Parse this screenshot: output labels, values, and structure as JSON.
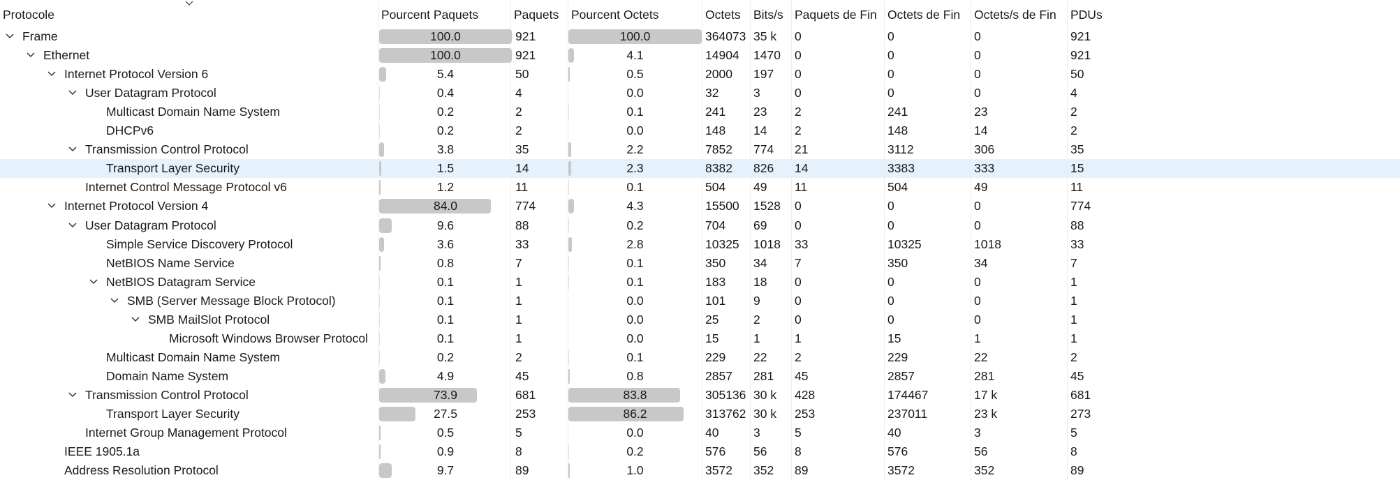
{
  "header": {
    "columns": [
      "Protocole",
      "Pourcent Paquets",
      "Paquets",
      "Pourcent Octets",
      "Octets",
      "Bits/s",
      "Paquets de Fin",
      "Octets de Fin",
      "Octets/s de Fin",
      "PDUs"
    ],
    "sort_indicator_icon": "chevron-down-icon"
  },
  "selected_row_index": 7,
  "rows": [
    {
      "name": "Frame",
      "depth": 0,
      "expanded": true,
      "pct_packets": "100.0",
      "packets": "921",
      "pct_bytes": "100.0",
      "bytes": "364073",
      "bits_s": "35 k",
      "end_packets": "0",
      "end_bytes": "0",
      "end_bits_s": "0",
      "pdus": "921"
    },
    {
      "name": "Ethernet",
      "depth": 1,
      "expanded": true,
      "pct_packets": "100.0",
      "packets": "921",
      "pct_bytes": "4.1",
      "bytes": "14904",
      "bits_s": "1470",
      "end_packets": "0",
      "end_bytes": "0",
      "end_bits_s": "0",
      "pdus": "921"
    },
    {
      "name": "Internet Protocol Version 6",
      "depth": 2,
      "expanded": true,
      "pct_packets": "5.4",
      "packets": "50",
      "pct_bytes": "0.5",
      "bytes": "2000",
      "bits_s": "197",
      "end_packets": "0",
      "end_bytes": "0",
      "end_bits_s": "0",
      "pdus": "50"
    },
    {
      "name": "User Datagram Protocol",
      "depth": 3,
      "expanded": true,
      "pct_packets": "0.4",
      "packets": "4",
      "pct_bytes": "0.0",
      "bytes": "32",
      "bits_s": "3",
      "end_packets": "0",
      "end_bytes": "0",
      "end_bits_s": "0",
      "pdus": "4"
    },
    {
      "name": "Multicast Domain Name System",
      "depth": 4,
      "expanded": null,
      "pct_packets": "0.2",
      "packets": "2",
      "pct_bytes": "0.1",
      "bytes": "241",
      "bits_s": "23",
      "end_packets": "2",
      "end_bytes": "241",
      "end_bits_s": "23",
      "pdus": "2"
    },
    {
      "name": "DHCPv6",
      "depth": 4,
      "expanded": null,
      "pct_packets": "0.2",
      "packets": "2",
      "pct_bytes": "0.0",
      "bytes": "148",
      "bits_s": "14",
      "end_packets": "2",
      "end_bytes": "148",
      "end_bits_s": "14",
      "pdus": "2"
    },
    {
      "name": "Transmission Control Protocol",
      "depth": 3,
      "expanded": true,
      "pct_packets": "3.8",
      "packets": "35",
      "pct_bytes": "2.2",
      "bytes": "7852",
      "bits_s": "774",
      "end_packets": "21",
      "end_bytes": "3112",
      "end_bits_s": "306",
      "pdus": "35"
    },
    {
      "name": "Transport Layer Security",
      "depth": 4,
      "expanded": null,
      "pct_packets": "1.5",
      "packets": "14",
      "pct_bytes": "2.3",
      "bytes": "8382",
      "bits_s": "826",
      "end_packets": "14",
      "end_bytes": "3383",
      "end_bits_s": "333",
      "pdus": "15"
    },
    {
      "name": "Internet Control Message Protocol v6",
      "depth": 3,
      "expanded": null,
      "pct_packets": "1.2",
      "packets": "11",
      "pct_bytes": "0.1",
      "bytes": "504",
      "bits_s": "49",
      "end_packets": "11",
      "end_bytes": "504",
      "end_bits_s": "49",
      "pdus": "11"
    },
    {
      "name": "Internet Protocol Version 4",
      "depth": 2,
      "expanded": true,
      "pct_packets": "84.0",
      "packets": "774",
      "pct_bytes": "4.3",
      "bytes": "15500",
      "bits_s": "1528",
      "end_packets": "0",
      "end_bytes": "0",
      "end_bits_s": "0",
      "pdus": "774"
    },
    {
      "name": "User Datagram Protocol",
      "depth": 3,
      "expanded": true,
      "pct_packets": "9.6",
      "packets": "88",
      "pct_bytes": "0.2",
      "bytes": "704",
      "bits_s": "69",
      "end_packets": "0",
      "end_bytes": "0",
      "end_bits_s": "0",
      "pdus": "88"
    },
    {
      "name": "Simple Service Discovery Protocol",
      "depth": 4,
      "expanded": null,
      "pct_packets": "3.6",
      "packets": "33",
      "pct_bytes": "2.8",
      "bytes": "10325",
      "bits_s": "1018",
      "end_packets": "33",
      "end_bytes": "10325",
      "end_bits_s": "1018",
      "pdus": "33"
    },
    {
      "name": "NetBIOS Name Service",
      "depth": 4,
      "expanded": null,
      "pct_packets": "0.8",
      "packets": "7",
      "pct_bytes": "0.1",
      "bytes": "350",
      "bits_s": "34",
      "end_packets": "7",
      "end_bytes": "350",
      "end_bits_s": "34",
      "pdus": "7"
    },
    {
      "name": "NetBIOS Datagram Service",
      "depth": 4,
      "expanded": true,
      "pct_packets": "0.1",
      "packets": "1",
      "pct_bytes": "0.1",
      "bytes": "183",
      "bits_s": "18",
      "end_packets": "0",
      "end_bytes": "0",
      "end_bits_s": "0",
      "pdus": "1"
    },
    {
      "name": "SMB (Server Message Block Protocol)",
      "depth": 5,
      "expanded": true,
      "pct_packets": "0.1",
      "packets": "1",
      "pct_bytes": "0.0",
      "bytes": "101",
      "bits_s": "9",
      "end_packets": "0",
      "end_bytes": "0",
      "end_bits_s": "0",
      "pdus": "1"
    },
    {
      "name": "SMB MailSlot Protocol",
      "depth": 6,
      "expanded": true,
      "pct_packets": "0.1",
      "packets": "1",
      "pct_bytes": "0.0",
      "bytes": "25",
      "bits_s": "2",
      "end_packets": "0",
      "end_bytes": "0",
      "end_bits_s": "0",
      "pdus": "1"
    },
    {
      "name": "Microsoft Windows Browser Protocol",
      "depth": 7,
      "expanded": null,
      "pct_packets": "0.1",
      "packets": "1",
      "pct_bytes": "0.0",
      "bytes": "15",
      "bits_s": "1",
      "end_packets": "1",
      "end_bytes": "15",
      "end_bits_s": "1",
      "pdus": "1"
    },
    {
      "name": "Multicast Domain Name System",
      "depth": 4,
      "expanded": null,
      "pct_packets": "0.2",
      "packets": "2",
      "pct_bytes": "0.1",
      "bytes": "229",
      "bits_s": "22",
      "end_packets": "2",
      "end_bytes": "229",
      "end_bits_s": "22",
      "pdus": "2"
    },
    {
      "name": "Domain Name System",
      "depth": 4,
      "expanded": null,
      "pct_packets": "4.9",
      "packets": "45",
      "pct_bytes": "0.8",
      "bytes": "2857",
      "bits_s": "281",
      "end_packets": "45",
      "end_bytes": "2857",
      "end_bits_s": "281",
      "pdus": "45"
    },
    {
      "name": "Transmission Control Protocol",
      "depth": 3,
      "expanded": true,
      "pct_packets": "73.9",
      "packets": "681",
      "pct_bytes": "83.8",
      "bytes": "305136",
      "bits_s": "30 k",
      "end_packets": "428",
      "end_bytes": "174467",
      "end_bits_s": "17 k",
      "pdus": "681"
    },
    {
      "name": "Transport Layer Security",
      "depth": 4,
      "expanded": null,
      "pct_packets": "27.5",
      "packets": "253",
      "pct_bytes": "86.2",
      "bytes": "313762",
      "bits_s": "30 k",
      "end_packets": "253",
      "end_bytes": "237011",
      "end_bits_s": "23 k",
      "pdus": "273"
    },
    {
      "name": "Internet Group Management Protocol",
      "depth": 3,
      "expanded": null,
      "pct_packets": "0.5",
      "packets": "5",
      "pct_bytes": "0.0",
      "bytes": "40",
      "bits_s": "3",
      "end_packets": "5",
      "end_bytes": "40",
      "end_bits_s": "3",
      "pdus": "5"
    },
    {
      "name": "IEEE 1905.1a",
      "depth": 2,
      "expanded": null,
      "pct_packets": "0.9",
      "packets": "8",
      "pct_bytes": "0.2",
      "bytes": "576",
      "bits_s": "56",
      "end_packets": "8",
      "end_bytes": "576",
      "end_bits_s": "56",
      "pdus": "8"
    },
    {
      "name": "Address Resolution Protocol",
      "depth": 2,
      "expanded": null,
      "pct_packets": "9.7",
      "packets": "89",
      "pct_bytes": "1.0",
      "bytes": "3572",
      "bits_s": "352",
      "end_packets": "89",
      "end_bytes": "3572",
      "end_bits_s": "352",
      "pdus": "89"
    }
  ],
  "colors": {
    "bar_fill": "#c8c8c8",
    "selected_row": "#e5f1fb",
    "text": "#1a1a1a",
    "chevron": "#333333"
  }
}
